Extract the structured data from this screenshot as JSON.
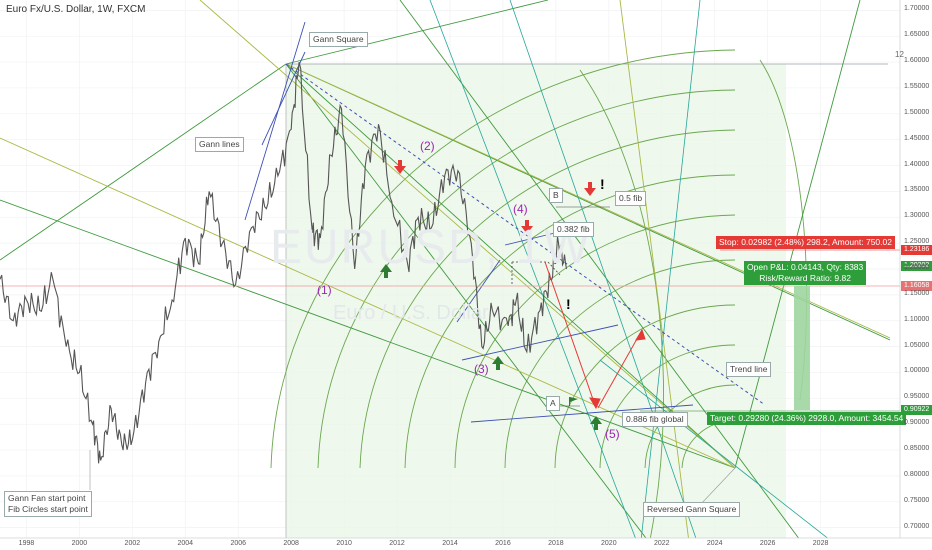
{
  "header": {
    "title": "Euro Fx/U.S. Dollar, 1W, FXCM"
  },
  "watermark": {
    "symbol": "EURUSD, 1W",
    "name": "Euro / U.S. Dollar"
  },
  "labels": {
    "gann_square": "Gann Square",
    "gann_lines": "Gann lines",
    "trend_line": "Trend line",
    "fan_start_1": "Gann Fan start point",
    "fan_start_2": "Fib Circles start point",
    "reversed_square": "Reversed Gann Square",
    "fib_05": "0.5 fib",
    "fib_0382": "0.382 fib",
    "fib_0886": "0.886 fib global",
    "box_a": "A",
    "box_b": "B",
    "top_right_num": "12"
  },
  "waves": [
    "(1)",
    "(2)",
    "(3)",
    "(4)",
    "(5)"
  ],
  "exclamations": [
    "!",
    "!"
  ],
  "trade": {
    "stop": "Stop: 0.02982 (2.48%) 298.2, Amount: 750.02",
    "open_pnl": "Open P&L: 0.04143, Qty: 8383",
    "risk_reward": "Risk/Reward Ratio: 9.82",
    "target": "Target: 0.29280 (24.36%) 2928.0, Amount: 3454.54"
  },
  "price_tags": {
    "stop": "1.23186",
    "current": "1.20202",
    "entry": "1.16058",
    "target": "0.90922"
  },
  "colors": {
    "green": "#2e7d32",
    "red": "#e53935",
    "blue": "#3f51b5",
    "olive": "#9aa832",
    "teal": "#26a69a",
    "purple": "#9c27b0"
  },
  "chart_data": {
    "type": "line",
    "x_ticks": [
      "1998",
      "2000",
      "2002",
      "2004",
      "2006",
      "2008",
      "2010",
      "2012",
      "2014",
      "2016",
      "2018",
      "2020",
      "2022",
      "2024",
      "2026",
      "2028"
    ],
    "y_ticks": [
      "1.70000",
      "1.65000",
      "1.60000",
      "1.55000",
      "1.50000",
      "1.45000",
      "1.40000",
      "1.35000",
      "1.30000",
      "1.25000",
      "1.20000",
      "1.15000",
      "1.10000",
      "1.05000",
      "1.00000",
      "0.95000",
      "0.90000",
      "0.85000",
      "0.80000",
      "0.75000",
      "0.70000"
    ],
    "ylim": [
      0.68,
      1.72
    ],
    "xlim": [
      1997.0,
      2031.0
    ],
    "series": [
      {
        "values": [
          [
            1997.0,
            1.18
          ],
          [
            1997.5,
            1.1
          ],
          [
            1998.0,
            1.14
          ],
          [
            1998.5,
            1.12
          ],
          [
            1999.0,
            1.18
          ],
          [
            1999.5,
            1.05
          ],
          [
            2000.0,
            1.0
          ],
          [
            2000.5,
            0.9
          ],
          [
            2000.8,
            0.83
          ],
          [
            2001.2,
            0.93
          ],
          [
            2001.6,
            0.86
          ],
          [
            2002.0,
            0.87
          ],
          [
            2002.5,
            0.98
          ],
          [
            2003.0,
            1.06
          ],
          [
            2003.5,
            1.14
          ],
          [
            2004.0,
            1.26
          ],
          [
            2004.5,
            1.21
          ],
          [
            2004.9,
            1.35
          ],
          [
            2005.4,
            1.25
          ],
          [
            2005.9,
            1.17
          ],
          [
            2006.5,
            1.28
          ],
          [
            2007.0,
            1.32
          ],
          [
            2007.5,
            1.38
          ],
          [
            2008.0,
            1.47
          ],
          [
            2008.3,
            1.6
          ],
          [
            2008.8,
            1.27
          ],
          [
            2009.1,
            1.26
          ],
          [
            2009.5,
            1.42
          ],
          [
            2009.9,
            1.51
          ],
          [
            2010.4,
            1.2
          ],
          [
            2010.8,
            1.4
          ],
          [
            2011.3,
            1.48
          ],
          [
            2011.8,
            1.33
          ],
          [
            2012.4,
            1.21
          ],
          [
            2012.8,
            1.3
          ],
          [
            2013.3,
            1.28
          ],
          [
            2013.8,
            1.38
          ],
          [
            2014.3,
            1.39
          ],
          [
            2014.8,
            1.25
          ],
          [
            2015.2,
            1.05
          ],
          [
            2015.6,
            1.12
          ],
          [
            2016.2,
            1.09
          ],
          [
            2016.5,
            1.14
          ],
          [
            2016.9,
            1.04
          ],
          [
            2017.4,
            1.12
          ],
          [
            2017.8,
            1.18
          ],
          [
            2018.1,
            1.25
          ],
          [
            2018.4,
            1.2
          ]
        ]
      }
    ]
  }
}
